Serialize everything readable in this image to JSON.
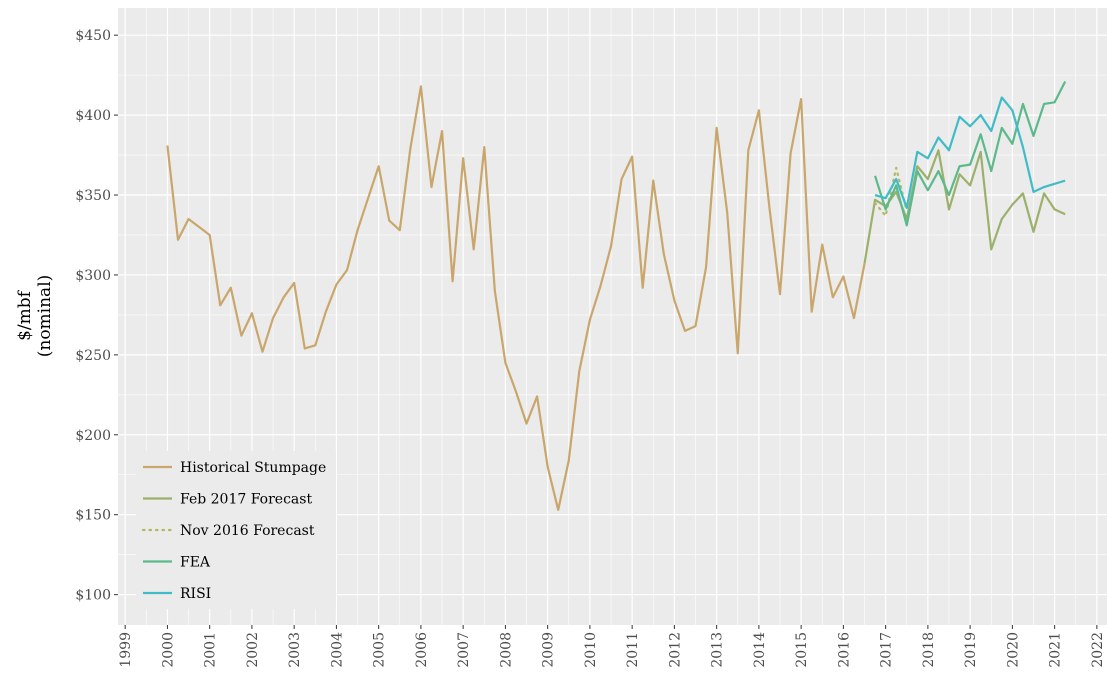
{
  "chart_data": {
    "type": "line",
    "ylabel": [
      "$/mbf",
      "(nominal)"
    ],
    "xlim": [
      1998.83,
      2022.24
    ],
    "xticks": [
      1999,
      2000,
      2001,
      2002,
      2003,
      2004,
      2005,
      2006,
      2007,
      2008,
      2009,
      2010,
      2011,
      2012,
      2013,
      2014,
      2015,
      2016,
      2017,
      2018,
      2019,
      2020,
      2021,
      2022
    ],
    "ylim": [
      81,
      467
    ],
    "yticks": [
      {
        "value": 100,
        "label": "$100"
      },
      {
        "value": 150,
        "label": "$150"
      },
      {
        "value": 200,
        "label": "$200"
      },
      {
        "value": 250,
        "label": "$250"
      },
      {
        "value": 300,
        "label": "$300"
      },
      {
        "value": 350,
        "label": "$350"
      },
      {
        "value": 400,
        "label": "$400"
      },
      {
        "value": 450,
        "label": "$450"
      }
    ],
    "grid": true,
    "legend": "lower left",
    "series": [
      {
        "name": "Historical Stumpage",
        "color": "#c9a66b",
        "dash": "solid",
        "x": [
          2000,
          2000.25,
          2000.5,
          2001,
          2001.25,
          2001.5,
          2001.75,
          2002,
          2002.25,
          2002.5,
          2002.75,
          2003,
          2003.25,
          2003.5,
          2003.75,
          2004,
          2004.25,
          2004.5,
          2004.75,
          2005,
          2005.25,
          2005.5,
          2005.75,
          2006,
          2006.25,
          2006.5,
          2006.75,
          2007,
          2007.25,
          2007.5,
          2007.75,
          2008,
          2008.25,
          2008.5,
          2008.75,
          2009,
          2009.25,
          2009.5,
          2009.75,
          2010,
          2010.25,
          2010.5,
          2010.75,
          2011,
          2011.25,
          2011.5,
          2011.75,
          2012,
          2012.25,
          2012.5,
          2012.75,
          2013,
          2013.25,
          2013.5,
          2013.75,
          2014,
          2014.25,
          2014.5,
          2014.75,
          2015,
          2015.25,
          2015.5,
          2015.75,
          2016,
          2016.25,
          2016.5
        ],
        "values": [
          381,
          322,
          335,
          325,
          281,
          292,
          262,
          276,
          252,
          273,
          286,
          295,
          254,
          256,
          277,
          294,
          303,
          328,
          348,
          368,
          334,
          328,
          379,
          418,
          355,
          390,
          296,
          373,
          316,
          380,
          290,
          245,
          227,
          207,
          224,
          180,
          153,
          184,
          240,
          272,
          293,
          318,
          360,
          374,
          292,
          359,
          313,
          284,
          265,
          268,
          305,
          392,
          339,
          251,
          378,
          403,
          342,
          288,
          376,
          410,
          277,
          319,
          286,
          299,
          273,
          307
        ]
      },
      {
        "name": "Feb 2017 Forecast",
        "color": "#9bb16b",
        "dash": "solid",
        "x": [
          2016.5,
          2016.75,
          2017,
          2017.25,
          2017.5,
          2017.75,
          2018,
          2018.25,
          2018.5,
          2018.75,
          2019,
          2019.25,
          2019.5,
          2019.75,
          2020,
          2020.25,
          2020.5,
          2020.75,
          2021,
          2021.25
        ],
        "values": [
          307,
          347,
          343,
          352,
          335,
          368,
          360,
          378,
          341,
          363,
          356,
          377,
          316,
          335,
          344,
          351,
          327,
          351,
          341,
          338
        ]
      },
      {
        "name": "Nov 2016 Forecast",
        "color": "#b5b862",
        "dash": "dotted",
        "x": [
          2016.75,
          2017,
          2017.25,
          2017.5
        ],
        "values": [
          345,
          337,
          367,
          340
        ]
      },
      {
        "name": "FEA",
        "color": "#5cb98b",
        "dash": "solid",
        "x": [
          2016.75,
          2017,
          2017.25,
          2017.5,
          2017.75,
          2018,
          2018.25,
          2018.5,
          2018.75,
          2019,
          2019.25,
          2019.5,
          2019.75,
          2020,
          2020.25,
          2020.5,
          2020.75,
          2021,
          2021.25
        ],
        "values": [
          362,
          341,
          356,
          331,
          365,
          353,
          365,
          350,
          368,
          369,
          388,
          365,
          392,
          382,
          407,
          387,
          407,
          408,
          421
        ]
      },
      {
        "name": "RISI",
        "color": "#40bcc8",
        "dash": "solid",
        "x": [
          2016.75,
          2017,
          2017.25,
          2017.5,
          2017.75,
          2018,
          2018.25,
          2018.5,
          2018.75,
          2019,
          2019.25,
          2019.5,
          2019.75,
          2020,
          2020.25,
          2020.5,
          2020.75,
          2021,
          2021.25
        ],
        "values": [
          350,
          348,
          360,
          342,
          377,
          373,
          386,
          378,
          399,
          393,
          400,
          390,
          411,
          403,
          380,
          352,
          355,
          357,
          359
        ]
      }
    ]
  }
}
